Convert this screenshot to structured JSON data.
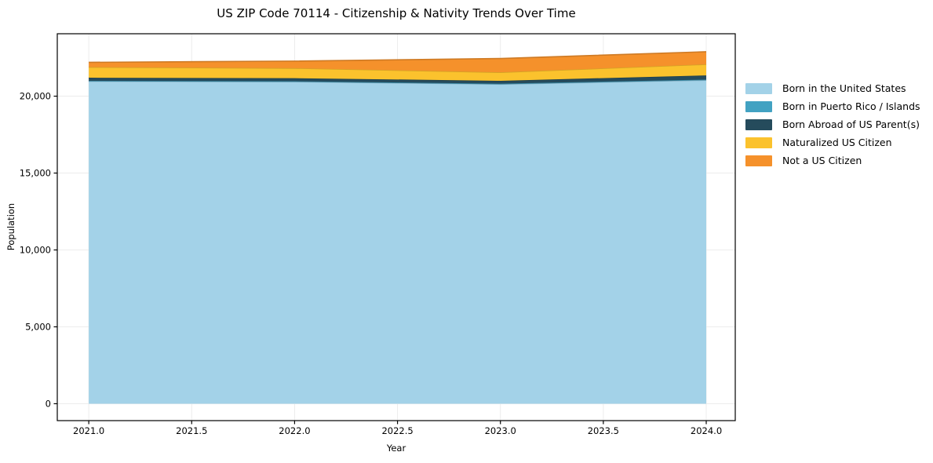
{
  "chart_data": {
    "type": "area",
    "stacked": true,
    "title": "US ZIP Code 70114 - Citizenship & Nativity Trends Over Time",
    "xlabel": "Year",
    "ylabel": "Population",
    "x": [
      2021,
      2022,
      2023,
      2024
    ],
    "series": [
      {
        "name": "Born in the United States",
        "color": "#A3D2E8",
        "values": [
          20970,
          20940,
          20780,
          21040
        ]
      },
      {
        "name": "Born in Puerto Rico / Islands",
        "color": "#42A2C2",
        "values": [
          30,
          30,
          30,
          40
        ]
      },
      {
        "name": "Born Abroad of US Parent(s)",
        "color": "#254B5C",
        "values": [
          200,
          200,
          190,
          270
        ]
      },
      {
        "name": "Naturalized US Citizen",
        "color": "#FBC22D",
        "values": [
          690,
          650,
          550,
          720
        ]
      },
      {
        "name": "Not a US Citizen",
        "color": "#F5912B",
        "values": [
          310,
          460,
          900,
          820
        ]
      }
    ],
    "xlim": [
      2020.847,
      2024.141
    ],
    "ylim": [
      -1100,
      24060
    ],
    "x_ticks": [
      2021.0,
      2021.5,
      2022.0,
      2022.5,
      2023.0,
      2023.5,
      2024.0
    ],
    "y_ticks": [
      0,
      5000,
      10000,
      15000,
      20000
    ],
    "grid": true,
    "grid_color": "#ececec",
    "legend_position": "right"
  }
}
